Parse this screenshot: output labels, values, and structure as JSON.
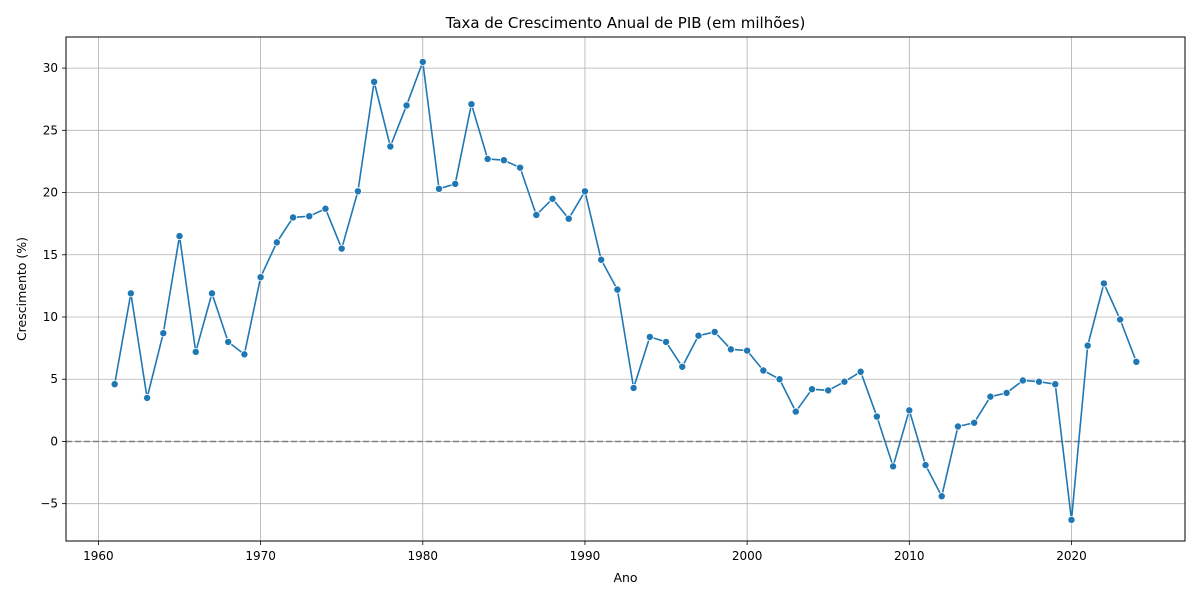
{
  "chart_data": {
    "type": "line",
    "title": "Taxa de Crescimento Anual de PIB (em milhões)",
    "xlabel": "Ano",
    "ylabel": "Crescimento (%)",
    "xlim": [
      1958,
      2027
    ],
    "ylim": [
      -8,
      32.5
    ],
    "xticks": [
      1960,
      1970,
      1980,
      1990,
      2000,
      2010,
      2020
    ],
    "yticks": [
      -5,
      0,
      5,
      10,
      15,
      20,
      25,
      30
    ],
    "ytick_labels": [
      "−5",
      "0",
      "5",
      "10",
      "15",
      "20",
      "25",
      "30"
    ],
    "grid": true,
    "reference_line": {
      "y": 0,
      "style": "dashed",
      "color": "#808080"
    },
    "series_color": "#1f77b4",
    "x": [
      1961,
      1962,
      1963,
      1964,
      1965,
      1966,
      1967,
      1968,
      1969,
      1970,
      1971,
      1972,
      1973,
      1974,
      1975,
      1976,
      1977,
      1978,
      1979,
      1980,
      1981,
      1982,
      1983,
      1984,
      1985,
      1986,
      1987,
      1988,
      1989,
      1990,
      1991,
      1992,
      1993,
      1994,
      1995,
      1996,
      1997,
      1998,
      1999,
      2000,
      2001,
      2002,
      2003,
      2004,
      2005,
      2006,
      2007,
      2008,
      2009,
      2010,
      2011,
      2012,
      2013,
      2014,
      2015,
      2016,
      2017,
      2018,
      2019,
      2020,
      2021,
      2022,
      2023,
      2024
    ],
    "values": [
      4.6,
      11.9,
      3.5,
      8.7,
      16.5,
      7.2,
      11.9,
      8.0,
      7.0,
      13.2,
      16.0,
      18.0,
      18.1,
      18.7,
      15.5,
      20.1,
      28.9,
      23.7,
      27.0,
      30.5,
      20.3,
      20.7,
      27.1,
      22.7,
      22.6,
      22.0,
      18.2,
      19.5,
      17.9,
      20.1,
      14.6,
      12.2,
      4.3,
      8.4,
      8.0,
      6.0,
      8.5,
      8.8,
      7.4,
      7.3,
      5.7,
      5.0,
      2.4,
      4.2,
      4.1,
      4.8,
      5.6,
      2.0,
      -2.0,
      2.5,
      -1.9,
      -4.4,
      1.2,
      1.5,
      3.6,
      3.9,
      4.9,
      4.8,
      4.6,
      -6.3,
      7.7,
      12.7,
      9.8,
      6.4
    ]
  }
}
